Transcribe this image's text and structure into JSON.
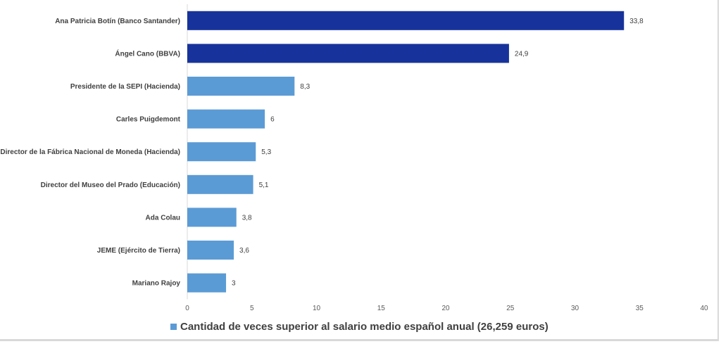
{
  "chart_data": {
    "type": "bar",
    "orientation": "horizontal",
    "categories": [
      "Ana Patricia Botín (Banco Santander)",
      "Ángel Cano (BBVA)",
      "Presidente de la SEPI (Hacienda)",
      "Carles Puigdemont",
      "Director de la Fábrica Nacional de Moneda (Hacienda)",
      "Director del Museo del Prado (Educación)",
      "Ada Colau",
      "JEME (Ejército de Tierra)",
      "Mariano Rajoy"
    ],
    "values": [
      33.8,
      24.9,
      8.3,
      6,
      5.3,
      5.1,
      3.8,
      3.6,
      3
    ],
    "value_labels": [
      "33,8",
      "24,9",
      "8,3",
      "6",
      "5,3",
      "5,1",
      "3,8",
      "3,6",
      "3"
    ],
    "bar_colors": [
      "#17339b",
      "#17339b",
      "#5b9bd5",
      "#5b9bd5",
      "#5b9bd5",
      "#5b9bd5",
      "#5b9bd5",
      "#5b9bd5",
      "#5b9bd5"
    ],
    "series": [
      {
        "name": "Cantidad de veces superior al salario medio español anual (26,259 euros)"
      }
    ],
    "xlim": [
      0,
      40
    ],
    "xticks": [
      "0",
      "5",
      "10",
      "15",
      "20",
      "25",
      "30",
      "35",
      "40"
    ],
    "grid": false,
    "legend": "bottom",
    "legend_color": "#5b9bd5"
  }
}
